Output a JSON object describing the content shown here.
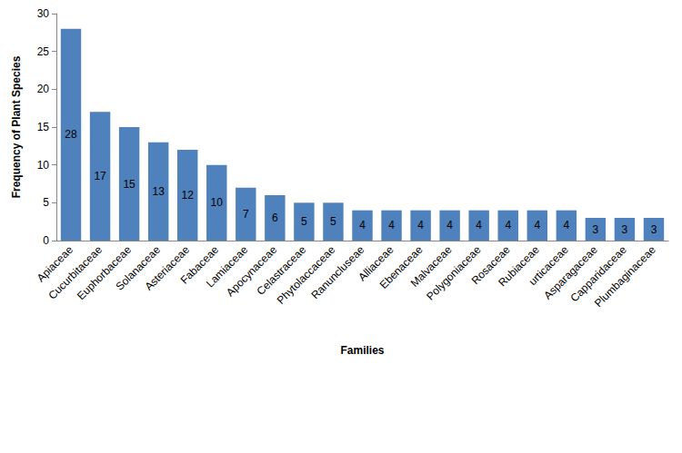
{
  "chart_data": {
    "type": "bar",
    "x_label": "Families",
    "y_label": "Frequency of Plant Species",
    "categories": [
      "Apiaceae",
      "Cucurbitaceae",
      "Euphorbaceae",
      "Solanaceae",
      "Asteriaceae",
      "Fabaceae",
      "Lamiaceae",
      "Apocynaceae",
      "Celastraceae",
      "Phytolaccaceae",
      "Ranuncluseae",
      "Alliaceae",
      "Ebenaceae",
      "Malvaceae",
      "Polygoniaceae",
      "Rosaceae",
      "Rubiaceae",
      "urticaceae",
      "Asparagaceae",
      "Capparidaceae",
      "Plumbaginaceae"
    ],
    "values": [
      28,
      17,
      15,
      13,
      12,
      10,
      7,
      6,
      5,
      5,
      4,
      4,
      4,
      4,
      4,
      4,
      4,
      4,
      3,
      3,
      3
    ],
    "color": "#4f81bd",
    "ylim": [
      0,
      30
    ],
    "yticks": [
      0,
      5,
      10,
      15,
      20,
      25,
      30
    ],
    "grid": false,
    "data_labels": true
  }
}
